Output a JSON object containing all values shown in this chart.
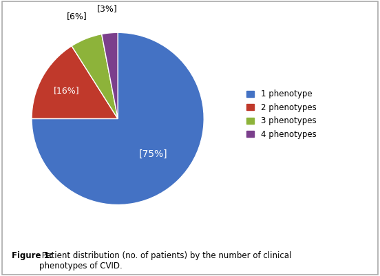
{
  "slices": [
    75,
    16,
    6,
    3
  ],
  "labels": [
    "[75%]",
    "[16%]",
    "[6%]",
    "[3%]"
  ],
  "legend_labels": [
    "1 phenotype",
    "2 phenotypes",
    "3 phenotypes",
    "4 phenotypes"
  ],
  "colors": [
    "#4472C4",
    "#C0392B",
    "#8DB33A",
    "#7B3F8C"
  ],
  "startangle": 90,
  "figure_caption_bold": "Figure 1:",
  "figure_caption_rest": " Patient distribution (no. of patients) by the number of clinical\nphenotypes of CVID.",
  "background_color": "#FFFFFF",
  "border_color": "#AAAAAA",
  "label_radii": [
    0.58,
    0.68,
    1.28,
    1.28
  ],
  "label_colors": [
    "white",
    "white",
    "black",
    "black"
  ],
  "label_fontsizes": [
    10,
    9,
    9,
    9
  ]
}
